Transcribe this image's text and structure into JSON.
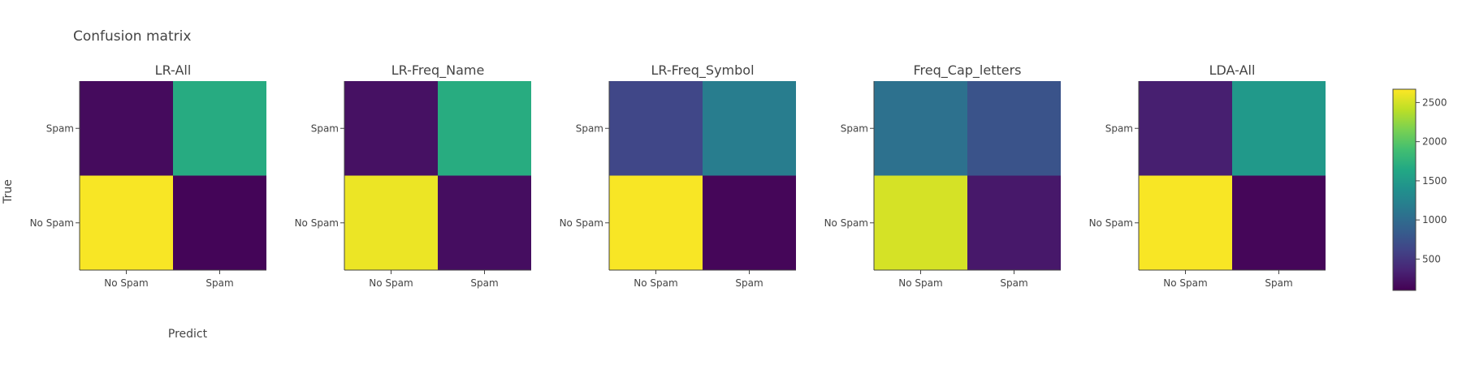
{
  "chart_data": {
    "type": "heatmap",
    "title": "Confusion matrix",
    "xlabel": "Predict",
    "ylabel": "True",
    "x_categories": [
      "No Spam",
      "Spam"
    ],
    "y_categories": [
      "No Spam",
      "Spam"
    ],
    "colorscale": "viridis",
    "zlim": [
      100,
      2670
    ],
    "colorbar_ticks": [
      500,
      1000,
      1500,
      2000,
      2500
    ],
    "panels": [
      {
        "name": "LR-All",
        "z": [
          [
            2650,
            130
          ],
          [
            170,
            1680
          ]
        ]
      },
      {
        "name": "LR-Freq_Name",
        "z": [
          [
            2600,
            190
          ],
          [
            220,
            1690
          ]
        ]
      },
      {
        "name": "LR-Freq_Symbol",
        "z": [
          [
            2650,
            140
          ],
          [
            640,
            1180
          ]
        ]
      },
      {
        "name": "Freq_Cap_letters",
        "z": [
          [
            2510,
            270
          ],
          [
            1060,
            760
          ]
        ]
      },
      {
        "name": "LDA-All",
        "z": [
          [
            2650,
            140
          ],
          [
            320,
            1480
          ]
        ]
      }
    ]
  }
}
